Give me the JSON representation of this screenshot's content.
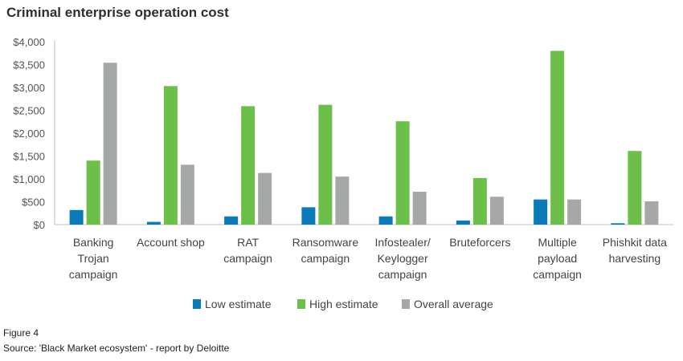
{
  "chart_data": {
    "type": "bar",
    "title": "Criminal enterprise operation cost",
    "xlabel": "",
    "ylabel": "",
    "ylim": [
      0,
      4000
    ],
    "yticks": [
      0,
      500,
      1000,
      1500,
      2000,
      2500,
      3000,
      3500,
      4000
    ],
    "ytick_labels": [
      "$0",
      "$500",
      "$1,000",
      "$1,500",
      "$2,000",
      "$2,500",
      "$3,000",
      "$3,500",
      "$4,000"
    ],
    "categories": [
      [
        "Banking",
        "Trojan",
        "campaign"
      ],
      [
        "Account shop"
      ],
      [
        "RAT",
        "campaign"
      ],
      [
        "Ransomware",
        "campaign"
      ],
      [
        "Infostealer/",
        "Keylogger",
        "campaign"
      ],
      [
        "Bruteforcers"
      ],
      [
        "Multiple",
        "payload",
        "campaign"
      ],
      [
        "Phishkit data",
        "harvesting"
      ]
    ],
    "series": [
      {
        "name": "Low estimate",
        "color": "#0a7ab8",
        "values": [
          320,
          60,
          180,
          380,
          180,
          90,
          550,
          30
        ]
      },
      {
        "name": "High estimate",
        "color": "#6cc04a",
        "values": [
          1400,
          3030,
          2590,
          2620,
          2260,
          1020,
          3800,
          1610
        ]
      },
      {
        "name": "Overall average",
        "color": "#a5a7a9",
        "values": [
          3540,
          1310,
          1130,
          1050,
          720,
          610,
          550,
          510
        ]
      }
    ],
    "legend_position": "bottom",
    "grid": false
  },
  "footer": {
    "figure_label": "Figure 4",
    "source": "Source: 'Black Market ecosystem' - report by Deloitte"
  }
}
